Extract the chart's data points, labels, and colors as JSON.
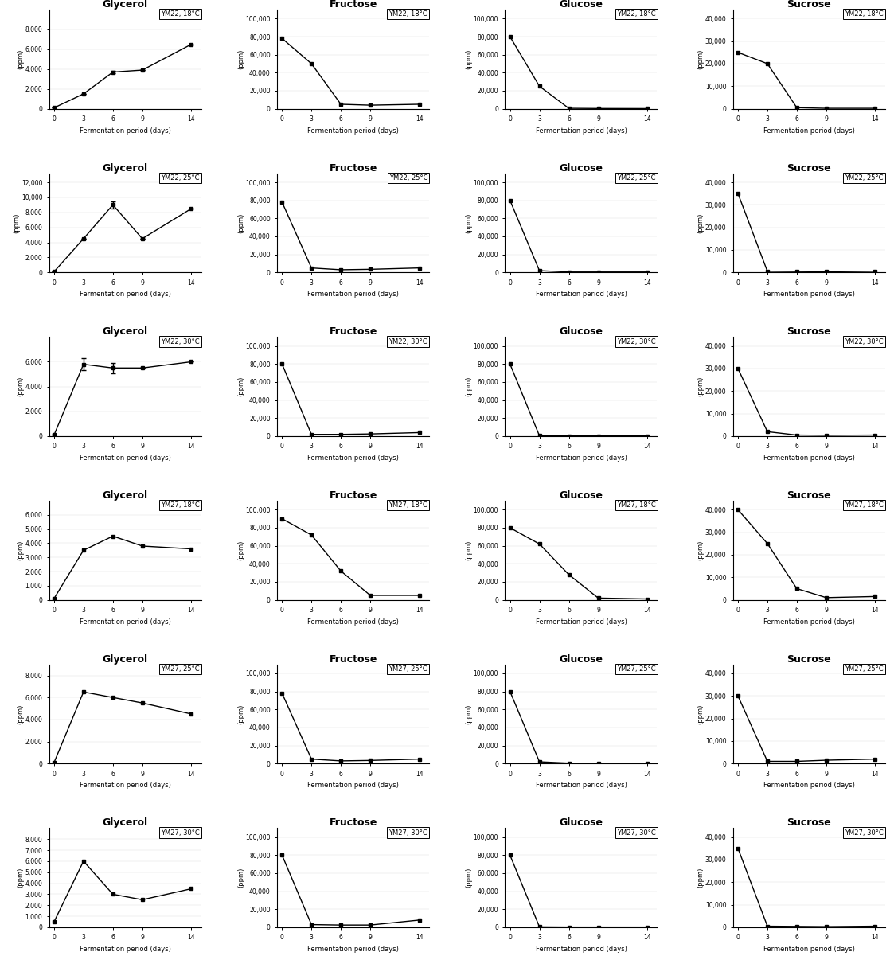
{
  "x_days": [
    0,
    3,
    6,
    9,
    14
  ],
  "rows": [
    {
      "label": "YM22, 18°C",
      "plots": [
        {
          "title": "Glycerol",
          "ylim": [
            0,
            10000
          ],
          "yticks": [
            0,
            2000,
            4000,
            6000,
            8000
          ],
          "y": [
            100,
            1500,
            3700,
            3900,
            6500
          ],
          "error": [
            0,
            0,
            150,
            0,
            0
          ]
        },
        {
          "title": "Fructose",
          "ylim": [
            0,
            110000
          ],
          "yticks": [
            0,
            20000,
            40000,
            60000,
            80000,
            100000
          ],
          "y": [
            78000,
            50000,
            5000,
            4000,
            5000
          ],
          "error": [
            0,
            0,
            0,
            0,
            0
          ]
        },
        {
          "title": "Glucose",
          "ylim": [
            0,
            110000
          ],
          "yticks": [
            0,
            20000,
            40000,
            60000,
            80000,
            100000
          ],
          "y": [
            80000,
            25000,
            500,
            300,
            200
          ],
          "error": [
            0,
            0,
            0,
            0,
            0
          ]
        },
        {
          "title": "Sucrose",
          "ylim": [
            0,
            44000
          ],
          "yticks": [
            0,
            10000,
            20000,
            30000,
            40000
          ],
          "y": [
            25000,
            20000,
            500,
            200,
            200
          ],
          "error": [
            0,
            0,
            0,
            0,
            0
          ]
        }
      ]
    },
    {
      "label": "YM22, 25°C",
      "plots": [
        {
          "title": "Glycerol",
          "ylim": [
            0,
            13200
          ],
          "yticks": [
            0,
            2000,
            4000,
            6000,
            8000,
            10000,
            12000
          ],
          "y": [
            100,
            4500,
            9000,
            4500,
            8500
          ],
          "error": [
            0,
            0,
            500,
            0,
            0
          ]
        },
        {
          "title": "Fructose",
          "ylim": [
            0,
            110000
          ],
          "yticks": [
            0,
            20000,
            40000,
            60000,
            80000,
            100000
          ],
          "y": [
            78000,
            5000,
            3000,
            3500,
            5000
          ],
          "error": [
            0,
            0,
            0,
            0,
            0
          ]
        },
        {
          "title": "Glucose",
          "ylim": [
            0,
            110000
          ],
          "yticks": [
            0,
            20000,
            40000,
            60000,
            80000,
            100000
          ],
          "y": [
            80000,
            2000,
            500,
            500,
            500
          ],
          "error": [
            0,
            0,
            0,
            0,
            0
          ]
        },
        {
          "title": "Sucrose",
          "ylim": [
            0,
            44000
          ],
          "yticks": [
            0,
            10000,
            20000,
            30000,
            40000
          ],
          "y": [
            35000,
            500,
            400,
            300,
            500
          ],
          "error": [
            0,
            0,
            0,
            0,
            0
          ]
        }
      ]
    },
    {
      "label": "YM22, 30°C",
      "plots": [
        {
          "title": "Glycerol",
          "ylim": [
            0,
            8000
          ],
          "yticks": [
            0,
            2000,
            4000,
            6000
          ],
          "y": [
            100,
            5800,
            5500,
            5500,
            6000
          ],
          "error": [
            0,
            500,
            400,
            0,
            0
          ]
        },
        {
          "title": "Fructose",
          "ylim": [
            0,
            110000
          ],
          "yticks": [
            0,
            20000,
            40000,
            60000,
            80000,
            100000
          ],
          "y": [
            80000,
            2000,
            2000,
            2500,
            4000
          ],
          "error": [
            0,
            0,
            0,
            0,
            0
          ]
        },
        {
          "title": "Glucose",
          "ylim": [
            0,
            110000
          ],
          "yticks": [
            0,
            20000,
            40000,
            60000,
            80000,
            100000
          ],
          "y": [
            80000,
            500,
            300,
            300,
            300
          ],
          "error": [
            0,
            0,
            0,
            0,
            0
          ]
        },
        {
          "title": "Sucrose",
          "ylim": [
            0,
            44000
          ],
          "yticks": [
            0,
            10000,
            20000,
            30000,
            40000
          ],
          "y": [
            30000,
            2000,
            500,
            400,
            500
          ],
          "error": [
            0,
            0,
            0,
            0,
            0
          ]
        }
      ]
    },
    {
      "label": "YM27, 18°C",
      "plots": [
        {
          "title": "Glycerol",
          "ylim": [
            0,
            7000
          ],
          "yticks": [
            0,
            1000,
            2000,
            3000,
            4000,
            5000,
            6000
          ],
          "y": [
            100,
            3500,
            4500,
            3800,
            3600
          ],
          "error": [
            0,
            0,
            0,
            0,
            0
          ]
        },
        {
          "title": "Fructose",
          "ylim": [
            0,
            110000
          ],
          "yticks": [
            0,
            20000,
            40000,
            60000,
            80000,
            100000
          ],
          "y": [
            90000,
            72000,
            32000,
            5000,
            5000
          ],
          "error": [
            0,
            0,
            0,
            0,
            0
          ]
        },
        {
          "title": "Glucose",
          "ylim": [
            0,
            110000
          ],
          "yticks": [
            0,
            20000,
            40000,
            60000,
            80000,
            100000
          ],
          "y": [
            80000,
            62000,
            28000,
            2000,
            1000
          ],
          "error": [
            0,
            0,
            0,
            0,
            0
          ]
        },
        {
          "title": "Sucrose",
          "ylim": [
            0,
            44000
          ],
          "yticks": [
            0,
            10000,
            20000,
            30000,
            40000
          ],
          "y": [
            40000,
            25000,
            5000,
            1000,
            1500
          ],
          "error": [
            0,
            0,
            0,
            0,
            0
          ]
        }
      ]
    },
    {
      "label": "YM27, 25°C",
      "plots": [
        {
          "title": "Glycerol",
          "ylim": [
            0,
            9000
          ],
          "yticks": [
            0,
            2000,
            4000,
            6000,
            8000
          ],
          "y": [
            100,
            6500,
            6000,
            5500,
            4500
          ],
          "error": [
            0,
            0,
            0,
            0,
            0
          ]
        },
        {
          "title": "Fructose",
          "ylim": [
            0,
            110000
          ],
          "yticks": [
            0,
            20000,
            40000,
            60000,
            80000,
            100000
          ],
          "y": [
            78000,
            5000,
            3000,
            3500,
            5000
          ],
          "error": [
            0,
            0,
            0,
            0,
            0
          ]
        },
        {
          "title": "Glucose",
          "ylim": [
            0,
            110000
          ],
          "yticks": [
            0,
            20000,
            40000,
            60000,
            80000,
            100000
          ],
          "y": [
            80000,
            2000,
            500,
            500,
            500
          ],
          "error": [
            0,
            0,
            0,
            0,
            0
          ]
        },
        {
          "title": "Sucrose",
          "ylim": [
            0,
            44000
          ],
          "yticks": [
            0,
            10000,
            20000,
            30000,
            40000
          ],
          "y": [
            30000,
            1000,
            1000,
            1500,
            2000
          ],
          "error": [
            0,
            0,
            0,
            0,
            0
          ]
        }
      ]
    },
    {
      "label": "YM27, 30°C",
      "plots": [
        {
          "title": "Glycerol",
          "ylim": [
            0,
            9000
          ],
          "yticks": [
            0,
            1000,
            2000,
            3000,
            4000,
            5000,
            6000,
            7000,
            8000
          ],
          "y": [
            500,
            6000,
            3000,
            2500,
            3500
          ],
          "error": [
            0,
            0,
            0,
            0,
            0
          ]
        },
        {
          "title": "Fructose",
          "ylim": [
            0,
            110000
          ],
          "yticks": [
            0,
            20000,
            40000,
            60000,
            80000,
            100000
          ],
          "y": [
            80000,
            3000,
            2500,
            2500,
            8000
          ],
          "error": [
            0,
            0,
            0,
            0,
            0
          ]
        },
        {
          "title": "Glucose",
          "ylim": [
            0,
            110000
          ],
          "yticks": [
            0,
            20000,
            40000,
            60000,
            80000,
            100000
          ],
          "y": [
            80000,
            500,
            300,
            300,
            300
          ],
          "error": [
            0,
            0,
            0,
            0,
            0
          ]
        },
        {
          "title": "Sucrose",
          "ylim": [
            0,
            44000
          ],
          "yticks": [
            0,
            10000,
            20000,
            30000,
            40000
          ],
          "y": [
            35000,
            500,
            400,
            300,
            500
          ],
          "error": [
            0,
            0,
            0,
            0,
            0
          ]
        }
      ]
    }
  ],
  "xlabel": "Fermentation period (days)",
  "xticks": [
    0,
    3,
    6,
    9,
    14
  ],
  "line_color": "black",
  "marker": "s",
  "markersize": 3,
  "linewidth": 1.0,
  "background_color": "white",
  "title_fontsize": 9,
  "tick_fontsize": 5.5,
  "xlabel_fontsize": 6,
  "ylabel_fontsize": 6,
  "label_fontsize": 6
}
